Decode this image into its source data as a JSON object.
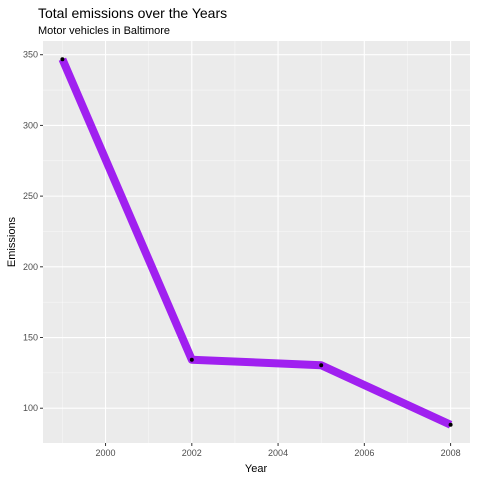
{
  "chart_data": {
    "type": "line",
    "title": "Total emissions over the Years",
    "subtitle": "Motor vehicles in Baltimore",
    "xlabel": "Year",
    "ylabel": "Emissions",
    "x": [
      1999,
      2002,
      2005,
      2008
    ],
    "series": [
      {
        "values": [
          346.8,
          134.3,
          130.4,
          88.3
        ]
      }
    ],
    "xlim": [
      1998.55,
      2008.45
    ],
    "ylim": [
      75.4,
      359.7
    ],
    "x_ticks": [
      2000,
      2002,
      2004,
      2006,
      2008
    ],
    "x_tick_labels": [
      "2000",
      "2002",
      "2004",
      "2006",
      "2008"
    ],
    "y_ticks": [
      100,
      150,
      200,
      250,
      300,
      350
    ],
    "y_tick_labels": [
      "100",
      "150",
      "200",
      "250",
      "300",
      "350"
    ],
    "grid": true,
    "legend": "none",
    "colors": {
      "panel_background": "#ebebeb",
      "grid_major": "#ffffff",
      "line": "#a020f0",
      "point": "#000000"
    }
  }
}
